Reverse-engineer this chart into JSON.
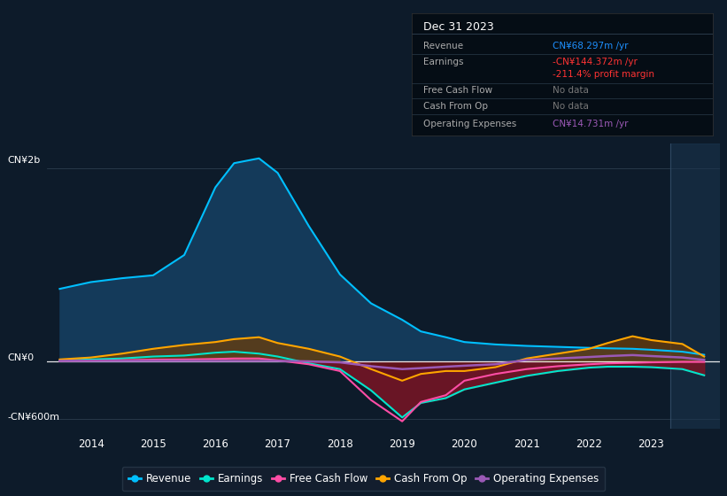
{
  "bg_color": "#0d1b2a",
  "plot_bg_color": "#0d1b2a",
  "years": [
    2013.5,
    2014,
    2014.5,
    2015,
    2015.5,
    2016,
    2016.3,
    2016.7,
    2017,
    2017.5,
    2018,
    2018.5,
    2019,
    2019.3,
    2019.7,
    2020,
    2020.5,
    2021,
    2021.5,
    2022,
    2022.3,
    2022.7,
    2023,
    2023.5,
    2023.85
  ],
  "revenue": [
    750,
    820,
    860,
    890,
    1100,
    1800,
    2050,
    2100,
    1950,
    1400,
    900,
    600,
    430,
    310,
    250,
    200,
    175,
    160,
    150,
    140,
    135,
    130,
    120,
    100,
    68
  ],
  "earnings": [
    10,
    20,
    30,
    50,
    60,
    90,
    100,
    80,
    50,
    -20,
    -80,
    -300,
    -580,
    -430,
    -380,
    -290,
    -220,
    -150,
    -100,
    -65,
    -55,
    -55,
    -60,
    -80,
    -144
  ],
  "free_cash_flow": [
    5,
    8,
    12,
    18,
    20,
    25,
    30,
    30,
    10,
    -30,
    -100,
    -400,
    -620,
    -420,
    -350,
    -200,
    -130,
    -80,
    -50,
    -30,
    -20,
    -15,
    -10,
    -5,
    -5
  ],
  "cash_from_op": [
    20,
    40,
    80,
    130,
    170,
    200,
    230,
    250,
    190,
    130,
    50,
    -80,
    -200,
    -130,
    -100,
    -100,
    -60,
    30,
    80,
    130,
    190,
    260,
    220,
    180,
    50
  ],
  "operating_expenses": [
    5,
    5,
    5,
    5,
    5,
    5,
    5,
    5,
    5,
    0,
    -10,
    -50,
    -80,
    -70,
    -55,
    -45,
    -30,
    15,
    30,
    45,
    55,
    65,
    55,
    40,
    15
  ],
  "revenue_color": "#00bfff",
  "earnings_color": "#00e5cc",
  "fcf_color": "#ff4da6",
  "cfo_color": "#ffa500",
  "opex_color": "#9b59b6",
  "revenue_fill": "#143a5a",
  "ylim_min": -700,
  "ylim_max": 2250,
  "ytick_labels": [
    "CN¥2b",
    "CN¥0",
    "-CN¥600m"
  ],
  "ytick_values": [
    2000,
    0,
    -600
  ],
  "xtick_labels": [
    "2014",
    "2015",
    "2016",
    "2017",
    "2018",
    "2019",
    "2020",
    "2021",
    "2022",
    "2023"
  ],
  "xtick_values": [
    2014,
    2015,
    2016,
    2017,
    2018,
    2019,
    2020,
    2021,
    2022,
    2023
  ],
  "legend_labels": [
    "Revenue",
    "Earnings",
    "Free Cash Flow",
    "Cash From Op",
    "Operating Expenses"
  ],
  "legend_colors": [
    "#00bfff",
    "#00e5cc",
    "#ff4da6",
    "#ffa500",
    "#9b59b6"
  ],
  "table_title": "Dec 31 2023",
  "xmin": 2013.3,
  "xmax": 2024.1,
  "shade_start": 2023.3
}
